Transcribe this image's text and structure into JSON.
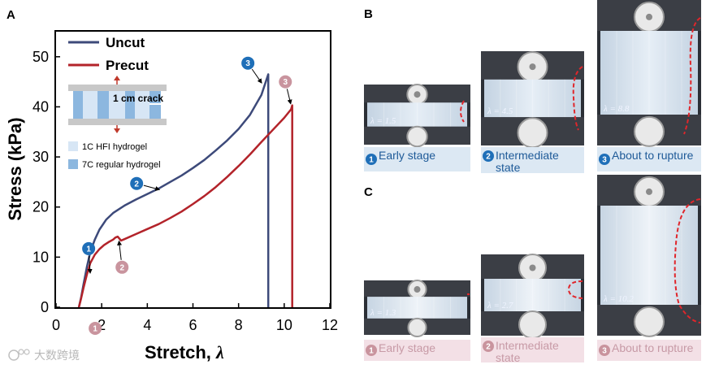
{
  "colors": {
    "uncut": "#3d4a7a",
    "precut": "#b3232a",
    "badge_blue": "#1f6fb8",
    "badge_pink": "#c9949e",
    "caption_bg_blue": "#dce8f3",
    "caption_bg_pink": "#f3e0e6",
    "caption_text_blue": "#1e5a98",
    "caption_text_pink": "#c79aa6",
    "hfi_light": "#d7e6f5",
    "regular_blue": "#8cb7df",
    "clamp_gray": "#c8c8c8"
  },
  "panels": {
    "a": "A",
    "b": "B",
    "c": "C"
  },
  "chart_data": {
    "type": "line",
    "xlabel_text": "Stretch,",
    "xlabel_symbol": "λ",
    "ylabel": "Stress (kPa)",
    "xlim": [
      0,
      12
    ],
    "ylim": [
      0,
      55
    ],
    "xticks": [
      0,
      2,
      4,
      6,
      8,
      10,
      12
    ],
    "yticks": [
      0,
      10,
      20,
      30,
      40,
      50
    ],
    "legend_position": "top-left",
    "series": [
      {
        "name": "Uncut",
        "color": "#3d4a7a",
        "x": [
          1.0,
          1.1,
          1.2,
          1.35,
          1.5,
          1.7,
          1.9,
          2.2,
          2.5,
          3.0,
          3.5,
          4.0,
          4.5,
          5.0,
          5.5,
          6.0,
          6.5,
          7.0,
          7.5,
          8.0,
          8.5,
          9.0,
          9.3,
          9.3
        ],
        "y": [
          0,
          2.0,
          4.5,
          8.0,
          11.0,
          13.5,
          15.5,
          17.5,
          18.8,
          20.3,
          21.5,
          22.6,
          23.7,
          25.0,
          26.3,
          27.8,
          29.4,
          31.3,
          33.3,
          35.6,
          38.4,
          42.4,
          46.5,
          0
        ]
      },
      {
        "name": "Precut",
        "color": "#b3232a",
        "x": [
          1.0,
          1.1,
          1.2,
          1.35,
          1.5,
          1.7,
          1.9,
          2.1,
          2.3,
          2.5,
          2.6,
          2.7,
          2.85,
          3.0,
          3.5,
          4.0,
          4.5,
          5.0,
          5.5,
          6.0,
          6.5,
          7.0,
          7.5,
          8.0,
          8.5,
          9.0,
          9.5,
          10.0,
          10.3,
          10.35,
          10.35
        ],
        "y": [
          0,
          1.8,
          3.8,
          6.5,
          8.8,
          10.5,
          11.6,
          12.4,
          13.0,
          13.5,
          13.9,
          14.1,
          13.3,
          13.6,
          14.6,
          15.6,
          16.6,
          17.8,
          19.1,
          20.6,
          22.2,
          24.0,
          26.0,
          28.2,
          30.5,
          33.0,
          35.4,
          37.8,
          39.5,
          40.3,
          0
        ]
      }
    ],
    "annotations": [
      {
        "num": "1",
        "series": "Uncut",
        "badge": "blue",
        "x": 1.5,
        "y": 6.5
      },
      {
        "num": "2",
        "series": "Uncut",
        "badge": "blue",
        "x": 4.6,
        "y": 23.4
      },
      {
        "num": "3",
        "series": "Uncut",
        "badge": "blue",
        "x": 9.05,
        "y": 44.5
      },
      {
        "num": "1",
        "series": "Precut",
        "badge": "pink",
        "x": 1.5,
        "y": 0
      },
      {
        "num": "2",
        "series": "Precut",
        "badge": "pink",
        "x": 2.75,
        "y": 13.5
      },
      {
        "num": "3",
        "series": "Precut",
        "badge": "pink",
        "x": 10.3,
        "y": 40.3
      }
    ]
  },
  "inset": {
    "crack_label": "1 cm crack",
    "legend_hfi": "1C HFI hydrogel",
    "legend_regular": "7C regular hydrogel"
  },
  "panel_b": {
    "photos": [
      {
        "num": "1",
        "lambda": "λ = 1.5",
        "caption_lines": [
          "Early stage"
        ]
      },
      {
        "num": "2",
        "lambda": "λ = 4.5",
        "caption_lines": [
          "Intermediate",
          "state"
        ]
      },
      {
        "num": "3",
        "lambda": "λ = 8.8",
        "caption_lines": [
          "About to rupture"
        ]
      }
    ]
  },
  "panel_c": {
    "photos": [
      {
        "num": "1",
        "lambda": "λ = 1.3",
        "caption_lines": [
          "Early stage"
        ]
      },
      {
        "num": "2",
        "lambda": "λ = 2.7",
        "caption_lines": [
          "Intermediate",
          "state"
        ]
      },
      {
        "num": "3",
        "lambda": "λ = 10.2",
        "caption_lines": [
          "About to rupture"
        ]
      }
    ]
  },
  "watermark": "大数跨境"
}
